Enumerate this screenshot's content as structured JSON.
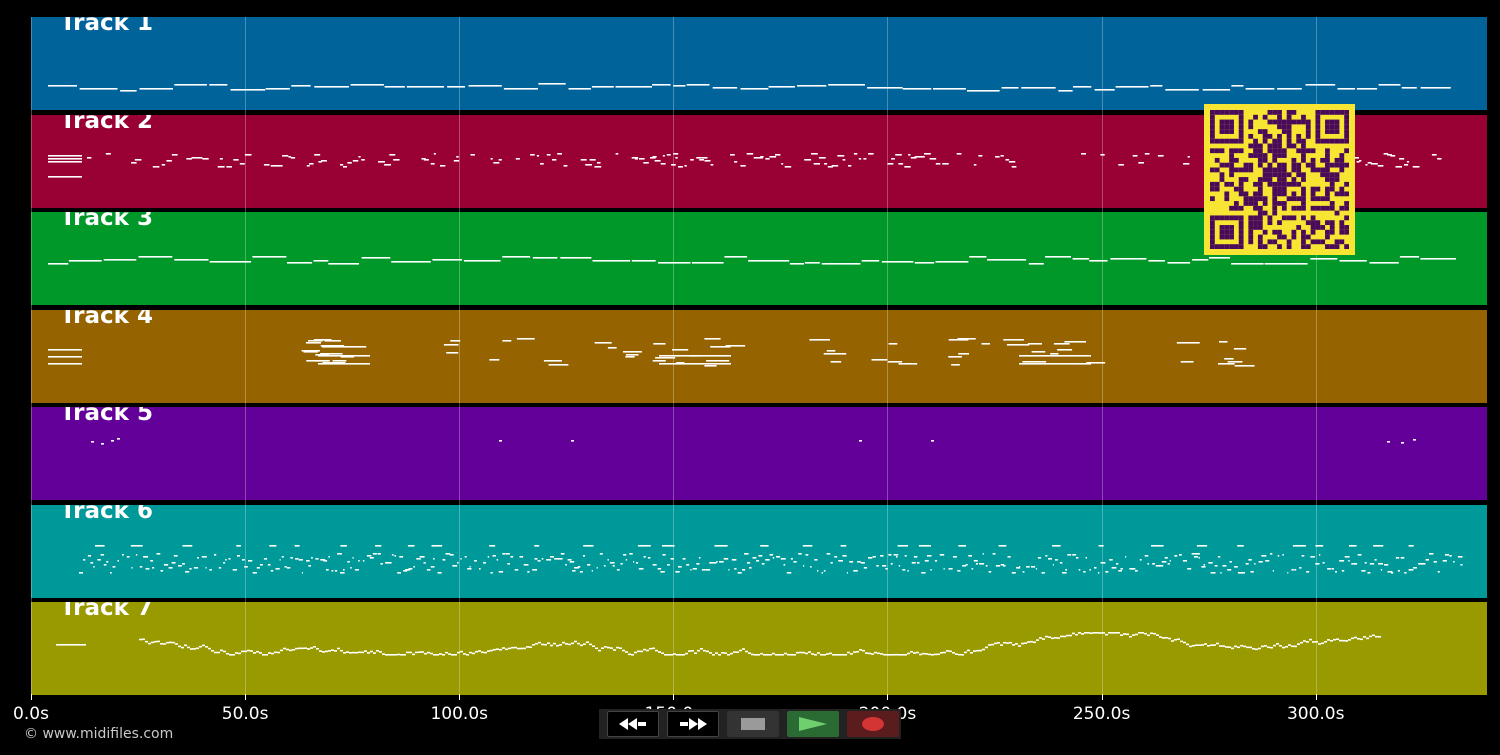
{
  "tracks": [
    {
      "label": "Track 1",
      "color": "#00639a"
    },
    {
      "label": "Track 2",
      "color": "#990033"
    },
    {
      "label": "Track 3",
      "color": "#009829"
    },
    {
      "label": "Track 4",
      "color": "#956400"
    },
    {
      "label": "Track 5",
      "color": "#630099"
    },
    {
      "label": "Track 6",
      "color": "#009999"
    },
    {
      "label": "Track 7",
      "color": "#999900"
    }
  ],
  "timeline": {
    "ticks": [
      "0.0s",
      "50.0s",
      "100.0s",
      "150.0s",
      "200.0s",
      "250.0s",
      "300.0s"
    ],
    "tick_values": [
      0,
      50,
      100,
      150,
      200,
      250,
      300
    ],
    "max_seconds": 340
  },
  "transport": {
    "rewind_icon": "rewind-icon",
    "fast_forward_icon": "fast-forward-icon",
    "stop_icon": "stop-icon",
    "play_icon": "play-icon",
    "record_icon": "record-icon"
  },
  "qr_code": {
    "color": "#f7e534",
    "dark": "#4a0a5a"
  },
  "footer": {
    "copyright": "© www.midifiles.com"
  }
}
